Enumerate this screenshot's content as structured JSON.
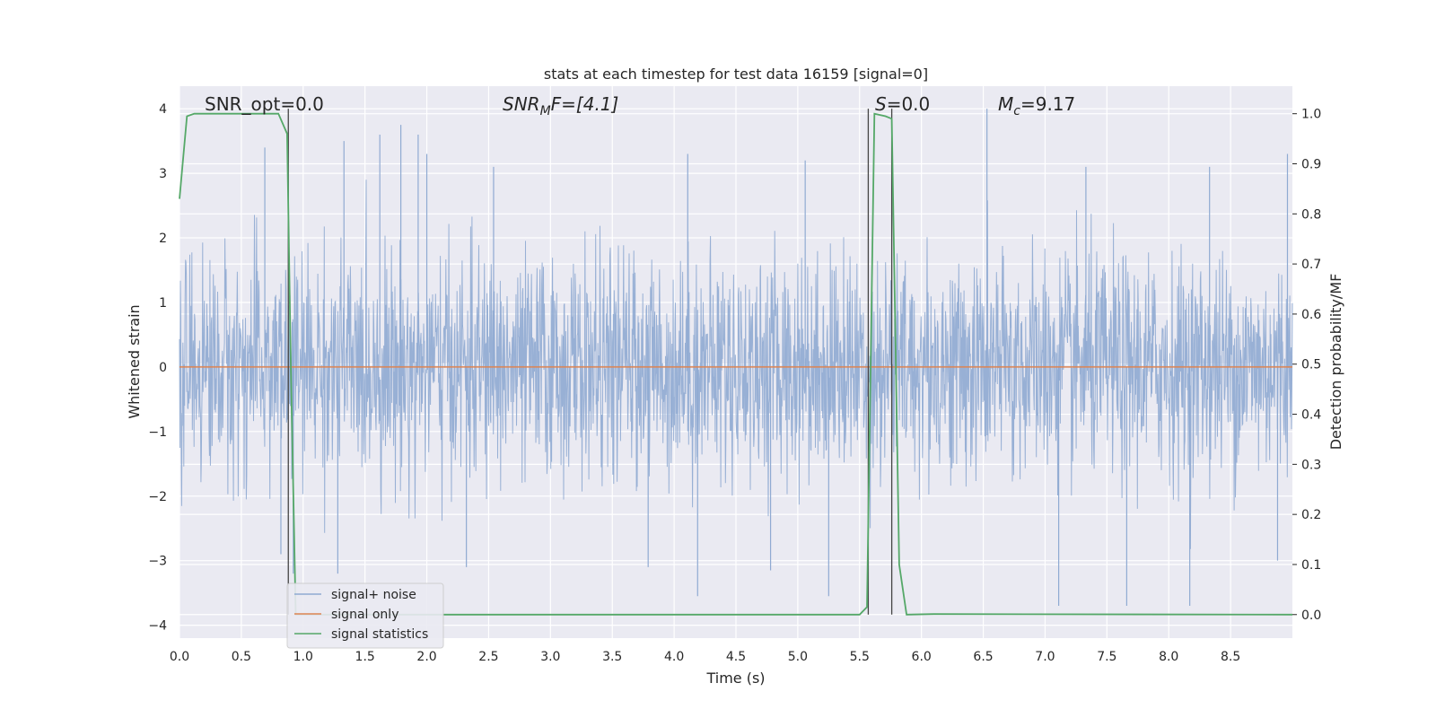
{
  "chart_data": {
    "type": "line",
    "title": "stats at each timestep for test data 16159 [signal=0]",
    "xlabel": "Time (s)",
    "ylabel_left": "Whitened strain",
    "ylabel_right": "Detection probability/MF",
    "xlim": [
      0.0,
      9.0
    ],
    "ylim_left": [
      -4.2,
      4.35
    ],
    "ylim_right": [
      -0.047,
      1.055
    ],
    "x_ticks": [
      "0.0",
      "0.5",
      "1.0",
      "1.5",
      "2.0",
      "2.5",
      "3.0",
      "3.5",
      "4.0",
      "4.5",
      "5.0",
      "5.5",
      "6.0",
      "6.5",
      "7.0",
      "7.5",
      "8.0",
      "8.5"
    ],
    "x_tick_values": [
      0.0,
      0.5,
      1.0,
      1.5,
      2.0,
      2.5,
      3.0,
      3.5,
      4.0,
      4.5,
      5.0,
      5.5,
      6.0,
      6.5,
      7.0,
      7.5,
      8.0,
      8.5
    ],
    "y_ticks_left": [
      "4",
      "3",
      "2",
      "1",
      "0",
      "−1",
      "−2",
      "−3",
      "−4"
    ],
    "y_tick_values_left": [
      4,
      3,
      2,
      1,
      0,
      -1,
      -2,
      -3,
      -4
    ],
    "y_ticks_right": [
      "1.0",
      "0.9",
      "0.8",
      "0.7",
      "0.6",
      "0.5",
      "0.4",
      "0.3",
      "0.2",
      "0.1",
      "0.0"
    ],
    "y_tick_values_right": [
      1.0,
      0.9,
      0.8,
      0.7,
      0.6,
      0.5,
      0.4,
      0.3,
      0.2,
      0.1,
      0.0
    ],
    "annotations": {
      "snr_opt": "SNR_opt=0.0",
      "snr_mf_sym": "SNR",
      "snr_mf_sub": "M",
      "snr_mf_rest": "F=[4.1]",
      "s_sym": "S",
      "s_rest": "=0.0",
      "mc_sym": "M",
      "mc_sub": "c",
      "mc_rest": "=9.17"
    },
    "vertical_lines_x": [
      0.88,
      5.57,
      5.76
    ],
    "noise_envelope": {
      "description_values_only": true,
      "typical_upper": 1.7,
      "typical_lower": -1.6,
      "peaks": [
        {
          "x": 0.69,
          "y": 3.4
        },
        {
          "x": 1.33,
          "y": 3.5
        },
        {
          "x": 1.62,
          "y": 3.6
        },
        {
          "x": 1.79,
          "y": 3.75
        },
        {
          "x": 1.93,
          "y": 3.6
        },
        {
          "x": 2.0,
          "y": 3.3
        },
        {
          "x": 2.54,
          "y": 3.1
        },
        {
          "x": 4.11,
          "y": 3.3
        },
        {
          "x": 5.06,
          "y": 3.2
        },
        {
          "x": 6.53,
          "y": 4.0
        },
        {
          "x": 7.33,
          "y": 3.1
        },
        {
          "x": 8.33,
          "y": 3.1
        },
        {
          "x": 8.96,
          "y": 3.3
        }
      ],
      "troughs": [
        {
          "x": 0.82,
          "y": -2.9
        },
        {
          "x": 0.92,
          "y": -3.2
        },
        {
          "x": 1.28,
          "y": -3.2
        },
        {
          "x": 2.32,
          "y": -3.1
        },
        {
          "x": 3.79,
          "y": -3.1
        },
        {
          "x": 4.19,
          "y": -3.55
        },
        {
          "x": 4.78,
          "y": -3.15
        },
        {
          "x": 5.25,
          "y": -3.55
        },
        {
          "x": 7.11,
          "y": -3.7
        },
        {
          "x": 7.66,
          "y": -3.7
        },
        {
          "x": 8.17,
          "y": -3.7
        },
        {
          "x": 8.88,
          "y": -3.0
        }
      ]
    },
    "series": [
      {
        "name": "signal+ noise",
        "color": "#8faad2",
        "axis": "left"
      },
      {
        "name": "signal only",
        "color": "#dd8452",
        "axis": "left",
        "x": [
          0.0,
          9.0
        ],
        "y": [
          0.0,
          0.0
        ]
      },
      {
        "name": "signal statistics",
        "color": "#55a868",
        "axis": "right",
        "x": [
          0.0,
          0.06,
          0.12,
          0.5,
          0.8,
          0.87,
          0.9,
          0.94,
          5.5,
          5.56,
          5.62,
          5.71,
          5.76,
          5.82,
          5.88,
          6.1,
          9.0
        ],
        "y": [
          0.83,
          0.995,
          1.0,
          1.0,
          1.0,
          0.96,
          0.5,
          0.0,
          0.0,
          0.015,
          1.0,
          0.995,
          0.99,
          0.1,
          0.0,
          0.001,
          0.0
        ]
      }
    ],
    "legend": {
      "placement": "lower-left",
      "entries": [
        "signal+ noise",
        "signal only",
        "signal statistics"
      ]
    }
  }
}
